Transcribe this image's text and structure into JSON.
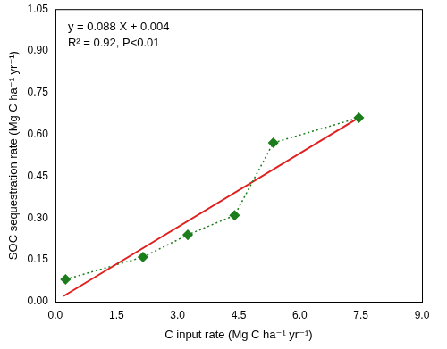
{
  "chart_data": {
    "type": "scatter",
    "x_label": "C input rate (Mg C ha⁻¹ yr⁻¹)",
    "y_label": "SOC sequestration rate (Mg C ha⁻¹ yr⁻¹)",
    "annotations": [
      "y = 0.088 X + 0.004",
      "R² = 0.92, P<0.01"
    ],
    "series": [
      {
        "type": "line",
        "color": "#e0201e",
        "marker": "none",
        "line_style": "solid",
        "x": [
          0.2,
          7.45
        ],
        "values": [
          0.02,
          0.66
        ]
      },
      {
        "type": "line",
        "color": "#1b7d1b",
        "marker": "diamond",
        "line_style": "dotted",
        "x": [
          0.25,
          2.15,
          3.25,
          4.4,
          5.35,
          7.45
        ],
        "values": [
          0.08,
          0.16,
          0.24,
          0.31,
          0.57,
          0.66
        ]
      }
    ],
    "xlim": [
      0,
      9
    ],
    "xticks": [
      {
        "value": 0,
        "label": "0.0"
      },
      {
        "value": 1.5,
        "label": "1.5"
      },
      {
        "value": 3,
        "label": "3.0"
      },
      {
        "value": 4.5,
        "label": "4.5"
      },
      {
        "value": 6,
        "label": "6.0"
      },
      {
        "value": 7.5,
        "label": "7.5"
      },
      {
        "value": 9,
        "label": "9.0"
      }
    ],
    "ylim": [
      0,
      1.05
    ],
    "yticks": [
      {
        "value": 0,
        "label": "0.00"
      },
      {
        "value": 0.15,
        "label": "0.15"
      },
      {
        "value": 0.3,
        "label": "0.30"
      },
      {
        "value": 0.45,
        "label": "0.45"
      },
      {
        "value": 0.6,
        "label": "0.60"
      },
      {
        "value": 0.75,
        "label": "0.75"
      },
      {
        "value": 0.9,
        "label": "0.90"
      },
      {
        "value": 1.05,
        "label": "1.05"
      }
    ],
    "grid": false
  }
}
